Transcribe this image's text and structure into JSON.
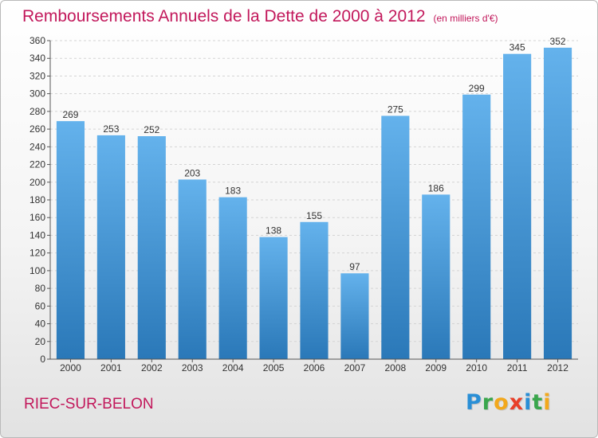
{
  "title": "Remboursements Annuels de la Dette de 2000 à 2012",
  "unit": "(en milliers d'€)",
  "commune": "RIEC-SUR-BELON",
  "brand": {
    "letters": [
      "P",
      "r",
      "o",
      "x",
      "i",
      "t",
      "i"
    ],
    "colors": [
      "#2a8fd6",
      "#3aa64c",
      "#f2a81d",
      "#e8402a",
      "#2a8fd6",
      "#3aa64c",
      "#f2a81d"
    ]
  },
  "colors": {
    "title": "#c2185b",
    "bar_top": "#64b2ec",
    "bar_bottom": "#2a78b8",
    "grid": "#d4d4d4",
    "axis": "#555555"
  },
  "chart_data": {
    "type": "bar",
    "title": "Remboursements Annuels de la Dette de 2000 à 2012",
    "categories": [
      "2000",
      "2001",
      "2002",
      "2003",
      "2004",
      "2005",
      "2006",
      "2007",
      "2008",
      "2009",
      "2010",
      "2011",
      "2012"
    ],
    "values": [
      269,
      253,
      252,
      203,
      183,
      138,
      155,
      97,
      275,
      186,
      299,
      345,
      352
    ],
    "yticks": [
      0,
      20,
      40,
      60,
      80,
      100,
      120,
      140,
      160,
      180,
      200,
      220,
      240,
      260,
      280,
      300,
      320,
      340,
      360
    ],
    "ylim": [
      0,
      360
    ],
    "grid": true,
    "data_labels": true
  }
}
